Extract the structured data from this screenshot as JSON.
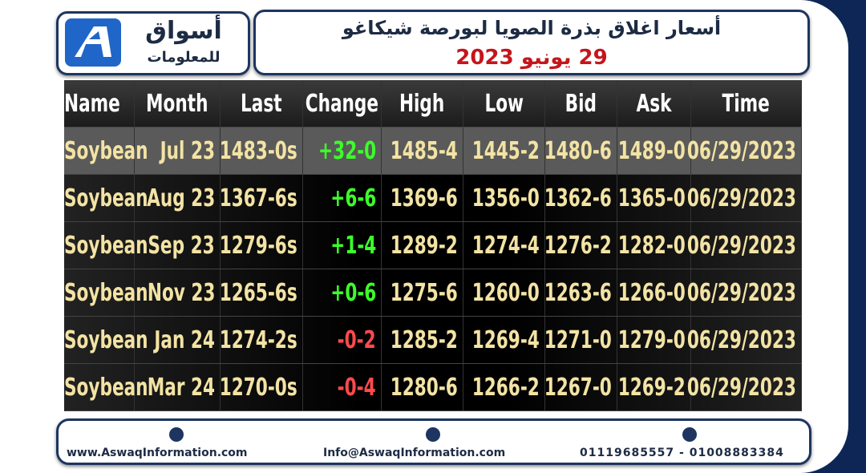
{
  "header": {
    "logo_name": "أسواق",
    "logo_sub": "للمعلومات",
    "title": "أسعار اغلاق بذرة الصويا لبورصة شيكاغو",
    "date": "29 يونيو 2023"
  },
  "table": {
    "columns": [
      "Name",
      "Month",
      "Last",
      "Change",
      "High",
      "Low",
      "Bid",
      "Ask",
      "Time"
    ],
    "rows": [
      [
        "Soybean",
        "Jul 23",
        "1483-0s",
        "+32-0",
        "1485-4",
        "1445-2",
        "1480-6",
        "1489-0",
        "06/29/2023"
      ],
      [
        "Soybean",
        "Aug 23",
        "1367-6s",
        "+6-6",
        "1369-6",
        "1356-0",
        "1362-6",
        "1365-0",
        "06/29/2023"
      ],
      [
        "Soybean",
        "Sep 23",
        "1279-6s",
        "+1-4",
        "1289-2",
        "1274-4",
        "1276-2",
        "1282-0",
        "06/29/2023"
      ],
      [
        "Soybean",
        "Nov 23",
        "1265-6s",
        "+0-6",
        "1275-6",
        "1260-0",
        "1263-6",
        "1266-0",
        "06/29/2023"
      ],
      [
        "Soybean",
        "Jan 24",
        "1274-2s",
        "-0-2",
        "1285-2",
        "1269-4",
        "1271-0",
        "1279-0",
        "06/29/2023"
      ],
      [
        "Soybean",
        "Mar 24",
        "1270-0s",
        "-0-4",
        "1280-6",
        "1266-2",
        "1267-0",
        "1269-2",
        "06/29/2023"
      ]
    ]
  },
  "footer": {
    "website": "www.AswaqInformation.com",
    "email": "Info@AswaqInformation.com",
    "phones": "01119685557 - 01008883384"
  }
}
